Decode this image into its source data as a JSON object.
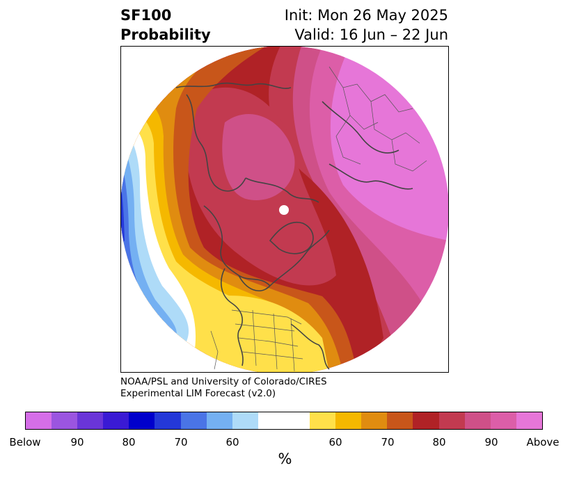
{
  "header": {
    "title_line1": "SF100",
    "title_line2": "Probability",
    "init_text": "Init: Mon 26 May 2025",
    "valid_text": "Valid: 16 Jun – 22 Jun"
  },
  "footer": {
    "credit_line1": "NOAA/PSL and University of Colorado/CIRES",
    "credit_line2": "Experimental LIM Forecast (v2.0)"
  },
  "colorbar": {
    "colors": [
      "#d56ee8",
      "#9b55e0",
      "#6a35d8",
      "#3a1ad4",
      "#0000cc",
      "#2438d8",
      "#4a74e6",
      "#74b0f2",
      "#aedbf8",
      "#ffffff",
      "#ffffff",
      "#ffe04a",
      "#f5b800",
      "#e08c10",
      "#c8561a",
      "#b02226",
      "#c23a50",
      "#cf5088",
      "#dc5ea8",
      "#e676d8"
    ],
    "ticks": [
      "Below",
      "90",
      "80",
      "70",
      "60",
      "60",
      "70",
      "80",
      "90",
      "Above"
    ],
    "unit": "%"
  },
  "map": {
    "projection": "north-polar stereographic",
    "palette": {
      "above": "#e676d8",
      "p90": "#dc5ea8",
      "p85": "#cf5088",
      "p80": "#c23a50",
      "p75": "#b02226",
      "p70": "#c8561a",
      "p65": "#e08c10",
      "p60": "#f5b800",
      "p55": "#ffe04a",
      "b55": "#aedbf8",
      "b60": "#74b0f2",
      "b65": "#4a74e6",
      "b70": "#2438d8"
    }
  }
}
